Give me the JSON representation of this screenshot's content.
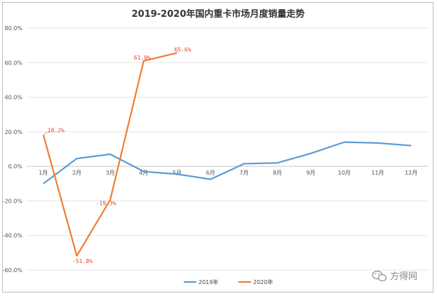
{
  "chart_data": {
    "type": "line",
    "title": "2019-2020年国内重卡市场月度销量走势",
    "categories": [
      "1月",
      "2月",
      "3月",
      "4月",
      "5月",
      "6月",
      "7月",
      "8月",
      "9月",
      "10月",
      "11月",
      "12月"
    ],
    "ylim": [
      -60,
      80
    ],
    "yticks": [
      "80.0%",
      "60.0%",
      "40.0%",
      "20.0%",
      "0.0%",
      "-20.0%",
      "-40.0%",
      "-60.0%"
    ],
    "ytick_values": [
      80,
      60,
      40,
      20,
      0,
      -20,
      -40,
      -60
    ],
    "grid": true,
    "legend": "bottom-center",
    "series": [
      {
        "name": "2019年",
        "color": "#5b9bd5",
        "values": [
          -10,
          4.5,
          7,
          -3,
          -4.5,
          -7.5,
          1.5,
          2,
          7.5,
          14,
          13.5,
          12
        ]
      },
      {
        "name": "2020年",
        "color": "#ed7d31",
        "values": [
          18.2,
          -51.8,
          -19.3,
          61.0,
          65.6,
          null,
          null,
          null,
          null,
          null,
          null,
          null
        ],
        "labels": [
          "18.2%",
          "-51.8%",
          "-19.3%",
          "61.0%",
          "65.6%"
        ]
      }
    ]
  },
  "watermark": {
    "text": "方得网",
    "icon": "wechat-icon"
  }
}
